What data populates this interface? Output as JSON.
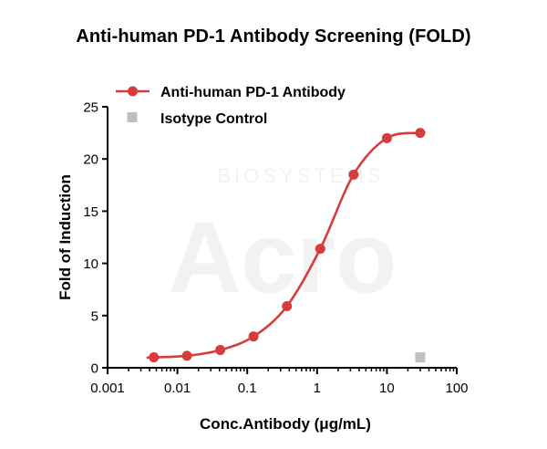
{
  "chart_data": {
    "type": "scatter",
    "title": "Anti-human PD-1 Antibody Screening (FOLD)",
    "xlabel": "Conc.Antibody (μg/mL)",
    "ylabel": "Fold of Induction",
    "x_scale": "log",
    "xlim": [
      0.001,
      100
    ],
    "ylim": [
      0,
      25
    ],
    "x_ticks": [
      0.001,
      0.01,
      0.1,
      1,
      10,
      100
    ],
    "x_tick_labels": [
      "0.001",
      "0.01",
      "0.1",
      "1",
      "10",
      "100"
    ],
    "y_ticks": [
      0,
      5,
      10,
      15,
      20,
      25
    ],
    "y_tick_labels": [
      "0",
      "5",
      "10",
      "15",
      "20",
      "25"
    ],
    "grid": false,
    "legend_position": "top-left",
    "series": [
      {
        "name": "Anti-human PD-1 Antibody",
        "marker": "circle",
        "color": "#d73c3c",
        "fit_curve": true,
        "points": [
          {
            "x": 0.0046,
            "y": 1.0
          },
          {
            "x": 0.0137,
            "y": 1.15
          },
          {
            "x": 0.041,
            "y": 1.7
          },
          {
            "x": 0.123,
            "y": 3.0
          },
          {
            "x": 0.37,
            "y": 5.9
          },
          {
            "x": 1.11,
            "y": 11.4
          },
          {
            "x": 3.33,
            "y": 18.5
          },
          {
            "x": 10,
            "y": 22.0
          },
          {
            "x": 30,
            "y": 22.5
          }
        ]
      },
      {
        "name": "Isotype Control",
        "marker": "square",
        "color": "#bfbfbf",
        "fit_curve": false,
        "points": [
          {
            "x": 30,
            "y": 1.0
          }
        ]
      }
    ]
  },
  "watermark": {
    "brand": "Acro",
    "subtitle": "BIOSYSTEMS"
  }
}
